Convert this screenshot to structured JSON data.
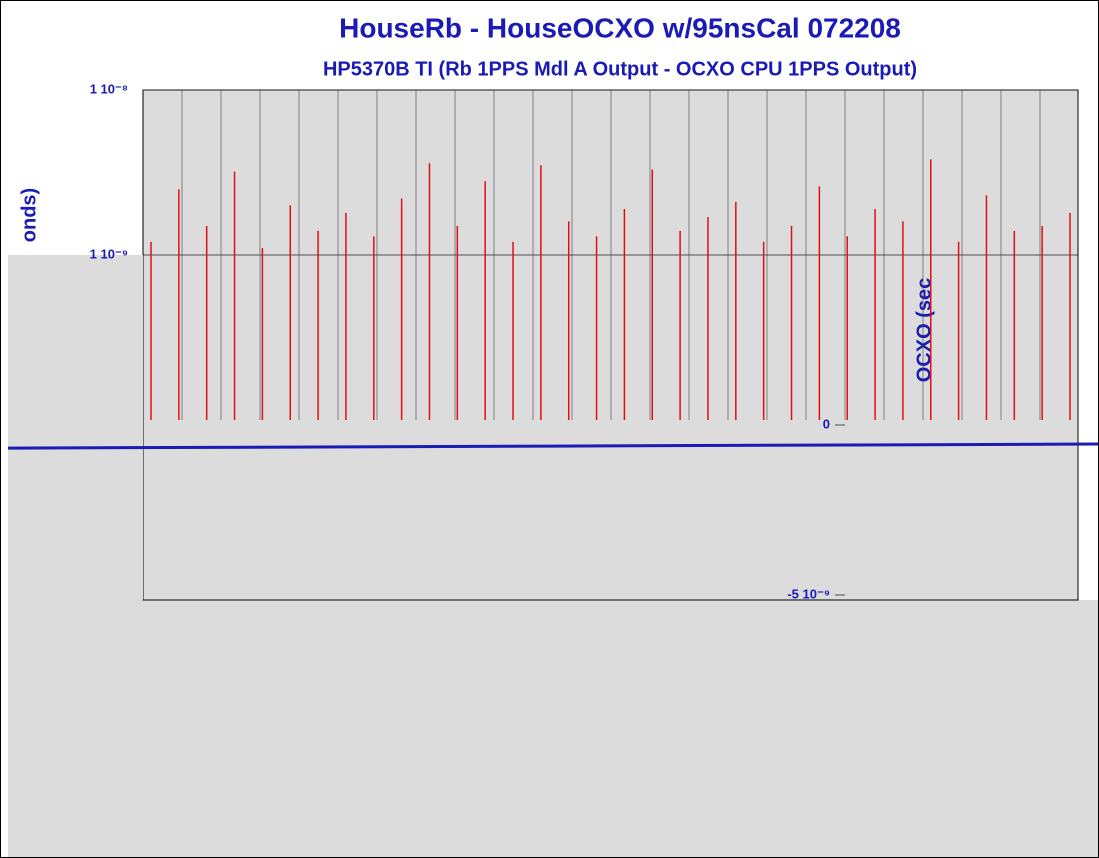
{
  "chart_data": [
    {
      "type": "spikes",
      "title": "HouseRb - HouseOCXO w/95nsCal 072208",
      "subtitle": "HP5370B TI (Rb 1PPS Mdl A Output - OCXO CPU 1PPS Output)",
      "y_label": "onds)",
      "log_scale": true,
      "grid": true,
      "color": "#e01010",
      "ylim": [
        1e-10,
        1e-08
      ],
      "yticks": [
        {
          "value": 1e-08,
          "label": "1 10⁻⁸"
        },
        {
          "value": 1e-09,
          "label": "1 10⁻⁹"
        }
      ],
      "values": [
        1.2e-09,
        2.5e-09,
        1.5e-09,
        3.2e-09,
        1.1e-09,
        2e-09,
        1.4e-09,
        1.8e-09,
        1.3e-09,
        2.2e-09,
        3.6e-09,
        1.5e-09,
        2.8e-09,
        1.2e-09,
        3.5e-09,
        1.6e-09,
        1.3e-09,
        1.9e-09,
        3.3e-09,
        1.4e-09,
        1.7e-09,
        2.1e-09,
        1.2e-09,
        1.5e-09,
        2.6e-09,
        1.3e-09,
        1.9e-09,
        1.6e-09,
        3.8e-09,
        1.2e-09,
        2.3e-09,
        1.4e-09,
        1.5e-09,
        1.8e-09
      ]
    },
    {
      "type": "line",
      "y_label": "OCXO (sec",
      "color": "#1a1ab4",
      "grid": false,
      "ylim": [
        -5e-09,
        5e-10
      ],
      "yticks": [
        0,
        {
          "value": -5e-09,
          "label": "-5 10⁻⁹"
        }
      ],
      "values": [
        -6.8e-10,
        -6.2e-10,
        -5.6e-10
      ]
    }
  ]
}
